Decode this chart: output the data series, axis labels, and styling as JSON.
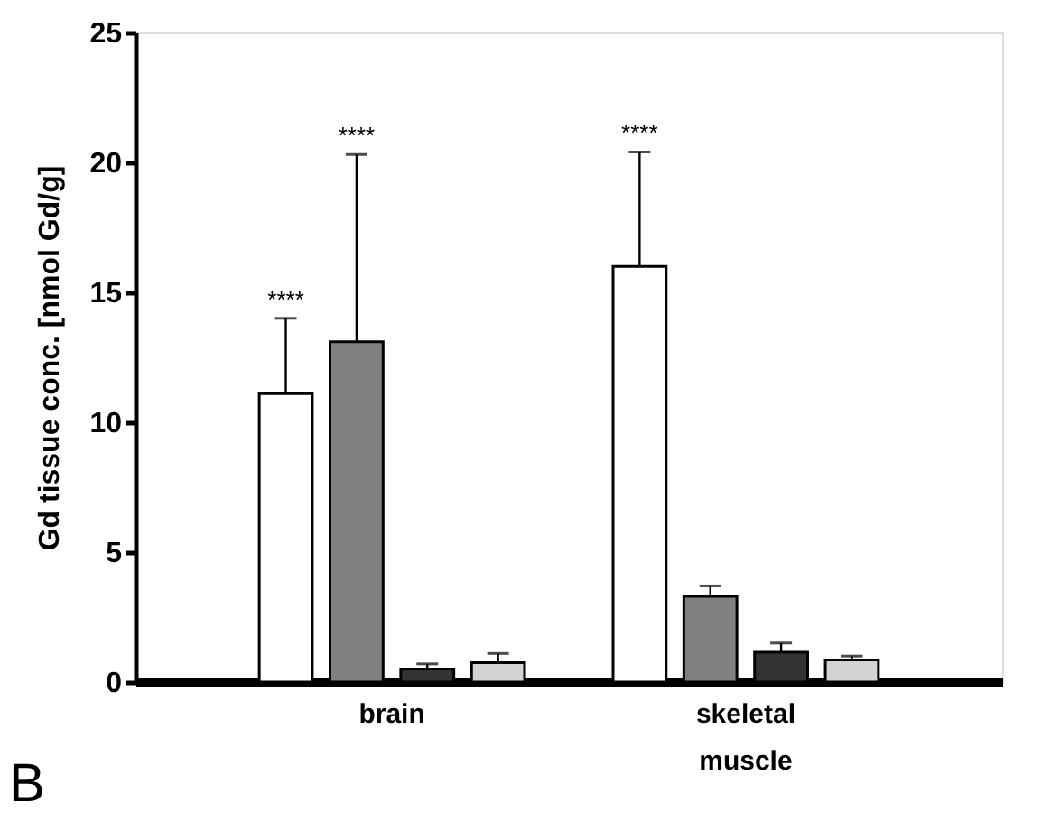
{
  "chart_data": {
    "type": "bar",
    "ylabel": "Gd tissue conc. [nmol Gd/g]",
    "categories": [
      "brain",
      "skeletal muscle"
    ],
    "series": [
      {
        "color": "#ffffff",
        "values": [
          11.1,
          16.0
        ],
        "errors": [
          [
            11.1,
            14.0
          ],
          [
            16.0,
            20.4
          ]
        ]
      },
      {
        "color": "#808080",
        "values": [
          13.1,
          3.3
        ],
        "errors": [
          [
            13.1,
            20.3
          ],
          [
            3.3,
            3.7
          ]
        ]
      },
      {
        "color": "#333333",
        "values": [
          0.5,
          1.15
        ],
        "errors": [
          [
            0.5,
            0.7
          ],
          [
            1.15,
            1.5
          ]
        ]
      },
      {
        "color": "#d3d3d3",
        "values": [
          0.75,
          0.85
        ],
        "errors": [
          [
            0.75,
            1.1
          ],
          [
            0.85,
            1.0
          ]
        ]
      }
    ],
    "ylim": [
      0,
      25
    ],
    "yticks": [
      0,
      5,
      10,
      15,
      20,
      25
    ],
    "grid": false,
    "legend": false,
    "annotations": [
      "****",
      "****",
      "****",
      "B"
    ]
  }
}
